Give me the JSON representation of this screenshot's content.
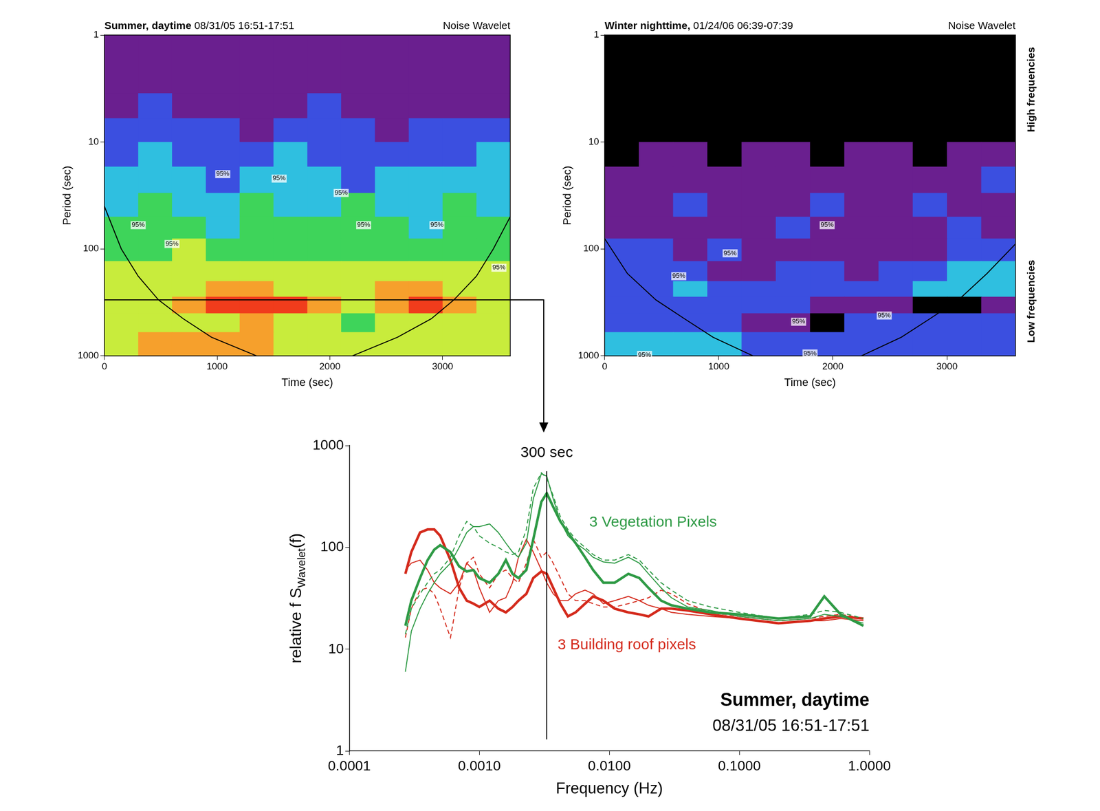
{
  "chart_data": [
    {
      "type": "heatmap",
      "title": "Summer, daytime",
      "subtitle": "08/31/05 16:51-17:51",
      "corner_label": "Noise Wavelet",
      "xlabel": "Time (sec)",
      "ylabel": "Period (sec)",
      "log": "y",
      "xlim": [
        0,
        3600
      ],
      "xticks": [
        0,
        1000,
        2000,
        3000
      ],
      "ylim": [
        1,
        1000
      ],
      "yticks": [
        1,
        10,
        100,
        1000
      ],
      "time_bins": [
        0,
        300,
        600,
        900,
        1200,
        1500,
        1800,
        2100,
        2400,
        2700,
        3000,
        3300,
        3600
      ],
      "period_bins": [
        1,
        2,
        3.5,
        6,
        10,
        17,
        30,
        50,
        80,
        130,
        200,
        280,
        400,
        600,
        1000
      ],
      "zlim": [
        0,
        7
      ],
      "cells": [
        [
          1,
          1,
          1,
          1,
          1,
          1,
          1,
          1,
          1,
          1,
          1,
          1
        ],
        [
          1,
          1,
          1,
          1,
          1,
          1,
          1,
          1,
          1,
          1,
          1,
          1
        ],
        [
          1,
          2,
          1,
          1,
          1,
          1,
          2,
          1,
          1,
          1,
          1,
          1
        ],
        [
          2,
          2,
          2,
          2,
          1,
          2,
          2,
          2,
          1,
          2,
          2,
          2
        ],
        [
          2,
          3,
          2,
          2,
          2,
          3,
          2,
          2,
          2,
          2,
          2,
          3
        ],
        [
          3,
          3,
          3,
          2,
          3,
          3,
          3,
          2,
          3,
          3,
          3,
          3
        ],
        [
          3,
          4,
          3,
          3,
          4,
          3,
          3,
          4,
          3,
          3,
          4,
          3
        ],
        [
          4,
          4,
          4,
          3,
          4,
          4,
          4,
          4,
          4,
          3,
          4,
          4
        ],
        [
          4,
          4,
          5,
          4,
          4,
          4,
          4,
          4,
          4,
          4,
          4,
          4
        ],
        [
          5,
          5,
          5,
          5,
          5,
          5,
          5,
          5,
          5,
          5,
          5,
          5
        ],
        [
          5,
          5,
          5,
          6,
          6,
          5,
          5,
          5,
          6,
          6,
          5,
          5
        ],
        [
          5,
          5,
          6,
          7,
          7,
          7,
          6,
          5,
          6,
          7,
          6,
          5
        ],
        [
          5,
          5,
          5,
          5,
          6,
          5,
          5,
          4,
          5,
          5,
          5,
          5
        ],
        [
          5,
          6,
          6,
          6,
          6,
          5,
          5,
          5,
          5,
          5,
          5,
          5
        ]
      ],
      "coi": {
        "x": [
          0,
          150,
          300,
          480,
          700,
          950,
          1350,
          1800,
          2200,
          2600,
          2900,
          3100,
          3300,
          3450,
          3600
        ],
        "y": [
          40,
          100,
          180,
          300,
          450,
          670,
          1000,
          null,
          1000,
          670,
          450,
          300,
          180,
          100,
          50
        ]
      },
      "contour_labels": [
        {
          "x": 300,
          "y": 60,
          "label": "95%"
        },
        {
          "x": 600,
          "y": 90,
          "label": "95%"
        },
        {
          "x": 1050,
          "y": 20,
          "label": "95%"
        },
        {
          "x": 1550,
          "y": 22,
          "label": "95%"
        },
        {
          "x": 2100,
          "y": 30,
          "label": "95%"
        },
        {
          "x": 2300,
          "y": 60,
          "label": "95%"
        },
        {
          "x": 2950,
          "y": 60,
          "label": "95%"
        },
        {
          "x": 3500,
          "y": 150,
          "label": "95%"
        }
      ],
      "reference_period": 300
    },
    {
      "type": "heatmap",
      "title": "Winter nighttime,",
      "subtitle": "01/24/06 06:39-07:39",
      "corner_label": "Noise Wavelet",
      "side_labels": {
        "top": "High frequencies",
        "bottom": "Low frequencies"
      },
      "xlabel": "Time (sec)",
      "ylabel": "Period (sec)",
      "log": "y",
      "xlim": [
        0,
        3600
      ],
      "xticks": [
        0,
        1000,
        2000,
        3000
      ],
      "ylim": [
        1,
        1000
      ],
      "yticks": [
        1,
        10,
        100,
        1000
      ],
      "time_bins": [
        0,
        300,
        600,
        900,
        1200,
        1500,
        1800,
        2100,
        2400,
        2700,
        3000,
        3300,
        3600
      ],
      "period_bins": [
        1,
        2,
        3.5,
        6,
        10,
        17,
        30,
        50,
        80,
        130,
        200,
        280,
        400,
        600,
        1000
      ],
      "zlim": [
        0,
        7
      ],
      "cells": [
        [
          0,
          0,
          0,
          0,
          0,
          0,
          0,
          0,
          0,
          0,
          0,
          0
        ],
        [
          0,
          0,
          0,
          0,
          0,
          0,
          0,
          0,
          0,
          0,
          0,
          0
        ],
        [
          0,
          0,
          0,
          0,
          0,
          0,
          0,
          0,
          0,
          0,
          0,
          0
        ],
        [
          0,
          0,
          0,
          0,
          0,
          0,
          0,
          0,
          0,
          0,
          0,
          0
        ],
        [
          0,
          1,
          1,
          0,
          1,
          1,
          0,
          1,
          1,
          0,
          1,
          1
        ],
        [
          1,
          1,
          1,
          1,
          1,
          1,
          1,
          1,
          1,
          1,
          1,
          2
        ],
        [
          1,
          1,
          2,
          1,
          1,
          1,
          2,
          1,
          1,
          2,
          1,
          1
        ],
        [
          1,
          1,
          1,
          1,
          1,
          2,
          1,
          1,
          1,
          1,
          2,
          1
        ],
        [
          2,
          2,
          1,
          2,
          1,
          1,
          1,
          1,
          1,
          1,
          2,
          2
        ],
        [
          2,
          2,
          2,
          1,
          1,
          2,
          2,
          1,
          2,
          2,
          3,
          3
        ],
        [
          2,
          2,
          3,
          2,
          2,
          2,
          2,
          2,
          2,
          3,
          3,
          3
        ],
        [
          2,
          2,
          2,
          2,
          2,
          2,
          1,
          1,
          1,
          0,
          0,
          1
        ],
        [
          2,
          2,
          2,
          2,
          1,
          1,
          0,
          2,
          2,
          2,
          2,
          2
        ],
        [
          3,
          3,
          3,
          3,
          2,
          2,
          2,
          2,
          2,
          2,
          2,
          2
        ]
      ],
      "coi": {
        "x": [
          0,
          200,
          450,
          700,
          950,
          1300,
          1800,
          2250,
          2600,
          2850,
          3100,
          3350,
          3600
        ],
        "y": [
          80,
          170,
          300,
          450,
          670,
          1000,
          null,
          1000,
          670,
          450,
          300,
          170,
          90
        ]
      },
      "contour_labels": [
        {
          "x": 1950,
          "y": 60,
          "label": "95%"
        },
        {
          "x": 1100,
          "y": 110,
          "label": "95%"
        },
        {
          "x": 650,
          "y": 180,
          "label": "95%"
        },
        {
          "x": 2450,
          "y": 420,
          "label": "95%"
        },
        {
          "x": 1700,
          "y": 480,
          "label": "95%"
        },
        {
          "x": 1800,
          "y": 950,
          "label": "95%"
        },
        {
          "x": 350,
          "y": 980,
          "label": "95%"
        }
      ]
    },
    {
      "type": "line",
      "title": "Summer, daytime",
      "subtitle": "08/31/05 16:51-17:51",
      "xlabel": "Frequency (Hz)",
      "ylabel": "relative f SWavelet(f)",
      "ylabel_subscript": "Wavelet",
      "log": true,
      "grid": false,
      "xlim": [
        0.0001,
        1
      ],
      "xticks": [
        0.0001,
        {
          "value": 0.001,
          "label": "0.0010"
        },
        {
          "value": 0.01,
          "label": "0.0100"
        },
        {
          "value": 0.1,
          "label": "0.1000"
        },
        {
          "value": 1,
          "label": "1.0000"
        }
      ],
      "ylim": [
        1,
        1000
      ],
      "yticks": [
        1,
        10,
        100,
        1000
      ],
      "x": [
        0.00027,
        0.0003,
        0.00035,
        0.0004,
        0.00045,
        0.0005,
        0.0006,
        0.0007,
        0.0008,
        0.0009,
        0.001,
        0.0012,
        0.0014,
        0.0016,
        0.0018,
        0.002,
        0.0023,
        0.0026,
        0.003,
        0.0033,
        0.0037,
        0.0042,
        0.0048,
        0.0055,
        0.0065,
        0.0075,
        0.009,
        0.011,
        0.014,
        0.017,
        0.02,
        0.025,
        0.03,
        0.04,
        0.06,
        0.1,
        0.2,
        0.35,
        0.45,
        0.6,
        0.9
      ],
      "series": [
        {
          "color": "#2e9a45",
          "line_style": "thick",
          "values": [
            17,
            30,
            50,
            75,
            95,
            105,
            90,
            65,
            58,
            60,
            50,
            45,
            55,
            75,
            55,
            50,
            60,
            120,
            280,
            340,
            250,
            180,
            140,
            110,
            80,
            60,
            45,
            45,
            55,
            50,
            40,
            30,
            27,
            25,
            23,
            22,
            20,
            21,
            33,
            22,
            17
          ]
        },
        {
          "color": "#2e9a45",
          "line_style": "solid",
          "values": [
            6,
            15,
            25,
            35,
            45,
            55,
            70,
            100,
            140,
            160,
            160,
            170,
            140,
            110,
            90,
            80,
            110,
            300,
            530,
            500,
            300,
            180,
            130,
            110,
            95,
            80,
            72,
            70,
            80,
            70,
            55,
            40,
            32,
            26,
            24,
            21,
            19,
            20,
            22,
            21,
            18
          ]
        },
        {
          "color": "#2e9a45",
          "line_style": "dashed",
          "values": [
            14,
            25,
            35,
            45,
            55,
            60,
            80,
            130,
            180,
            160,
            130,
            110,
            100,
            90,
            85,
            90,
            150,
            380,
            540,
            480,
            320,
            200,
            150,
            120,
            100,
            85,
            75,
            75,
            85,
            75,
            60,
            45,
            38,
            30,
            26,
            23,
            20,
            22,
            24,
            23,
            20
          ]
        },
        {
          "color": "#d42a1c",
          "line_style": "thick",
          "values": [
            55,
            90,
            140,
            150,
            150,
            130,
            75,
            40,
            30,
            28,
            26,
            30,
            25,
            23,
            26,
            30,
            35,
            50,
            58,
            55,
            40,
            28,
            21,
            23,
            28,
            33,
            30,
            25,
            23,
            22,
            21,
            25,
            25,
            24,
            22,
            20,
            18,
            19,
            20,
            21,
            20
          ]
        },
        {
          "color": "#d42a1c",
          "line_style": "solid",
          "values": [
            60,
            70,
            75,
            60,
            45,
            40,
            35,
            45,
            70,
            60,
            40,
            23,
            30,
            32,
            45,
            80,
            120,
            90,
            60,
            45,
            35,
            30,
            30,
            35,
            38,
            35,
            28,
            30,
            33,
            30,
            27,
            25,
            23,
            22,
            21,
            20,
            18,
            19,
            19,
            20,
            19
          ]
        },
        {
          "color": "#d42a1c",
          "line_style": "dashed",
          "values": [
            13,
            25,
            38,
            40,
            35,
            25,
            13,
            40,
            70,
            80,
            55,
            40,
            55,
            60,
            50,
            45,
            70,
            120,
            80,
            90,
            70,
            50,
            35,
            30,
            30,
            28,
            26,
            26,
            28,
            30,
            32,
            38,
            35,
            28,
            23,
            21,
            19,
            20,
            21,
            22,
            20
          ]
        }
      ],
      "vline": {
        "x": 0.0033,
        "y": [
          1.3,
          560
        ]
      },
      "annotations": [
        {
          "text": "300 sec",
          "x": 0.0033,
          "y": 850,
          "color": "#000000"
        },
        {
          "text": "3 Vegetation Pixels",
          "x": 0.007,
          "y": 175,
          "color": "#2e9a45"
        },
        {
          "text": "3 Building roof pixels",
          "x": 0.004,
          "y": 11,
          "color": "#d42a1c"
        }
      ]
    }
  ]
}
